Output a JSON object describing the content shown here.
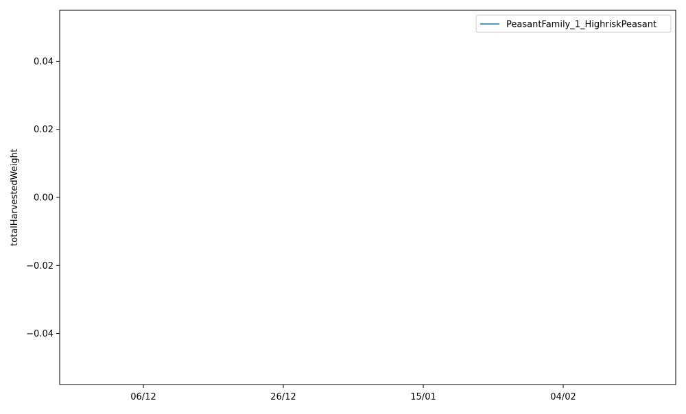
{
  "chart_data": {
    "type": "line",
    "title": "",
    "xlabel": "",
    "ylabel": "totalHarvestedWeight",
    "x_ticks": [
      "06/12",
      "26/12",
      "15/01",
      "04/02"
    ],
    "y_ticks": [
      "0.04",
      "0.02",
      "0.00",
      "−0.02",
      "−0.04"
    ],
    "y_tick_values": [
      0.04,
      0.02,
      0.0,
      -0.02,
      -0.04
    ],
    "ylim": [
      -0.055,
      0.055
    ],
    "grid": false,
    "legend_position": "top-right",
    "series": [
      {
        "name": "PeasantFamily_1_HighriskPeasant",
        "color": "#1f77b4",
        "values": []
      }
    ]
  }
}
